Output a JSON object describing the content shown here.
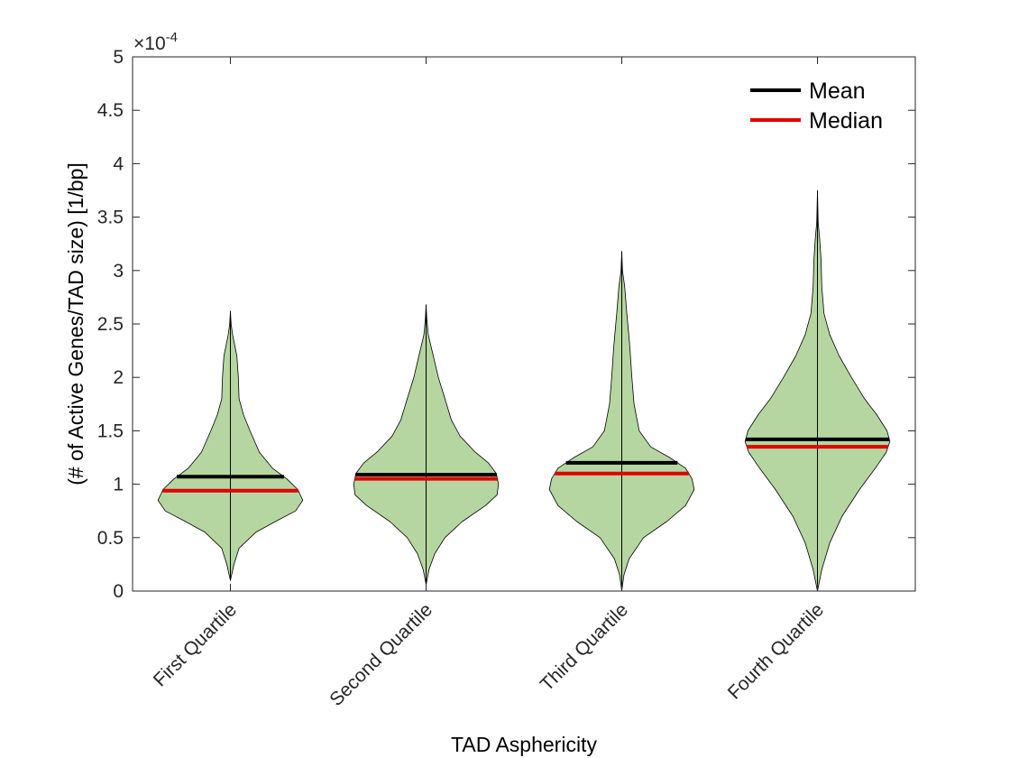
{
  "chart_data": {
    "type": "violin",
    "xlabel": "TAD Asphericity",
    "ylabel": "(# of Active Genes/TAD size) [1/bp]",
    "y_exponent": {
      "base": "×10",
      "power": "-4"
    },
    "ylim": [
      0,
      5
    ],
    "yticks": [
      "0",
      "0.5",
      "1",
      "1.5",
      "2",
      "2.5",
      "3",
      "3.5",
      "4",
      "4.5",
      "5"
    ],
    "categories": [
      "First Quartile",
      "Second Quartile",
      "Third Quartile",
      "Fourth Quartile"
    ],
    "fill_color": "#b5d6a0",
    "edge_color": "#000000",
    "legend": {
      "position": "top-right",
      "entries": [
        {
          "label": "Mean",
          "color": "#000000"
        },
        {
          "label": "Median",
          "color": "#e00000"
        }
      ]
    },
    "violins": [
      {
        "category": "First Quartile",
        "min": 0.1,
        "max": 2.62,
        "mean": 1.07,
        "median": 0.94,
        "profile": [
          [
            0.1,
            0.0
          ],
          [
            0.25,
            0.05
          ],
          [
            0.4,
            0.12
          ],
          [
            0.55,
            0.35
          ],
          [
            0.65,
            0.62
          ],
          [
            0.75,
            0.9
          ],
          [
            0.85,
            1.0
          ],
          [
            0.95,
            0.93
          ],
          [
            1.05,
            0.78
          ],
          [
            1.15,
            0.58
          ],
          [
            1.3,
            0.4
          ],
          [
            1.5,
            0.27
          ],
          [
            1.65,
            0.18
          ],
          [
            1.8,
            0.12
          ],
          [
            2.0,
            0.11
          ],
          [
            2.2,
            0.09
          ],
          [
            2.4,
            0.03
          ],
          [
            2.5,
            0.01
          ],
          [
            2.62,
            0.0
          ]
        ]
      },
      {
        "category": "Second Quartile",
        "min": 0.06,
        "max": 2.68,
        "mean": 1.09,
        "median": 1.05,
        "profile": [
          [
            0.06,
            0.0
          ],
          [
            0.2,
            0.04
          ],
          [
            0.35,
            0.12
          ],
          [
            0.5,
            0.26
          ],
          [
            0.65,
            0.5
          ],
          [
            0.8,
            0.82
          ],
          [
            0.9,
            0.98
          ],
          [
            1.0,
            1.0
          ],
          [
            1.1,
            0.97
          ],
          [
            1.2,
            0.86
          ],
          [
            1.3,
            0.68
          ],
          [
            1.45,
            0.47
          ],
          [
            1.6,
            0.35
          ],
          [
            1.8,
            0.26
          ],
          [
            2.0,
            0.17
          ],
          [
            2.2,
            0.1
          ],
          [
            2.4,
            0.03
          ],
          [
            2.55,
            0.01
          ],
          [
            2.68,
            0.0
          ]
        ]
      },
      {
        "category": "Third Quartile",
        "min": 0.0,
        "max": 3.18,
        "mean": 1.2,
        "median": 1.1,
        "profile": [
          [
            0.0,
            0.0
          ],
          [
            0.15,
            0.03
          ],
          [
            0.3,
            0.1
          ],
          [
            0.5,
            0.3
          ],
          [
            0.65,
            0.62
          ],
          [
            0.8,
            0.88
          ],
          [
            0.95,
            1.0
          ],
          [
            1.05,
            0.97
          ],
          [
            1.15,
            0.88
          ],
          [
            1.25,
            0.66
          ],
          [
            1.35,
            0.4
          ],
          [
            1.5,
            0.24
          ],
          [
            1.75,
            0.17
          ],
          [
            2.0,
            0.14
          ],
          [
            2.3,
            0.11
          ],
          [
            2.6,
            0.07
          ],
          [
            2.85,
            0.04
          ],
          [
            3.0,
            0.01
          ],
          [
            3.18,
            0.0
          ]
        ]
      },
      {
        "category": "Fourth Quartile",
        "min": 0.0,
        "max": 3.75,
        "mean": 1.42,
        "median": 1.35,
        "profile": [
          [
            0.0,
            0.0
          ],
          [
            0.2,
            0.06
          ],
          [
            0.45,
            0.17
          ],
          [
            0.7,
            0.34
          ],
          [
            0.95,
            0.58
          ],
          [
            1.15,
            0.8
          ],
          [
            1.3,
            0.95
          ],
          [
            1.4,
            1.0
          ],
          [
            1.5,
            0.96
          ],
          [
            1.65,
            0.82
          ],
          [
            1.8,
            0.65
          ],
          [
            2.0,
            0.47
          ],
          [
            2.2,
            0.3
          ],
          [
            2.4,
            0.17
          ],
          [
            2.6,
            0.09
          ],
          [
            2.85,
            0.06
          ],
          [
            3.1,
            0.05
          ],
          [
            3.3,
            0.03
          ],
          [
            3.45,
            0.01
          ],
          [
            3.75,
            0.0
          ]
        ]
      }
    ]
  }
}
